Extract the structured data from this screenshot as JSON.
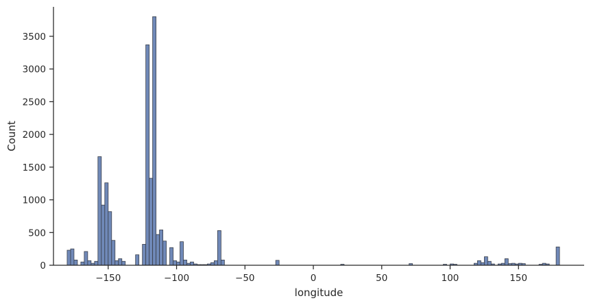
{
  "chart_data": {
    "type": "bar",
    "subtype": "histogram",
    "xlabel": "longitude",
    "ylabel": "Count",
    "xlim": [
      -190,
      198
    ],
    "ylim": [
      0,
      3950
    ],
    "xticks": [
      -150,
      -100,
      -50,
      0,
      50,
      100,
      150
    ],
    "xtick_labels": [
      "−150",
      "−100",
      "−50",
      "0",
      "50",
      "100",
      "150"
    ],
    "yticks": [
      0,
      500,
      1000,
      1500,
      2000,
      2500,
      3000,
      3500
    ],
    "ytick_labels": [
      "0",
      "500",
      "1000",
      "1500",
      "2000",
      "2500",
      "3000",
      "3500"
    ],
    "bin_width": 2.5,
    "grid": false,
    "colors": {
      "bar_fill": "#7089b8",
      "bar_edge": "#3a3f4a",
      "axis": "#262626"
    },
    "bins": [
      {
        "x": -180.0,
        "y": 230
      },
      {
        "x": -177.5,
        "y": 250
      },
      {
        "x": -175.0,
        "y": 80
      },
      {
        "x": -170.0,
        "y": 50
      },
      {
        "x": -167.5,
        "y": 210
      },
      {
        "x": -165.0,
        "y": 70
      },
      {
        "x": -162.5,
        "y": 30
      },
      {
        "x": -160.0,
        "y": 60
      },
      {
        "x": -157.5,
        "y": 1660
      },
      {
        "x": -155.0,
        "y": 920
      },
      {
        "x": -152.5,
        "y": 1260
      },
      {
        "x": -150.0,
        "y": 820
      },
      {
        "x": -147.5,
        "y": 380
      },
      {
        "x": -145.0,
        "y": 70
      },
      {
        "x": -142.5,
        "y": 100
      },
      {
        "x": -140.0,
        "y": 60
      },
      {
        "x": -130.0,
        "y": 160
      },
      {
        "x": -125.0,
        "y": 320
      },
      {
        "x": -122.5,
        "y": 3370
      },
      {
        "x": -120.0,
        "y": 1330
      },
      {
        "x": -117.5,
        "y": 3800
      },
      {
        "x": -115.0,
        "y": 470
      },
      {
        "x": -112.5,
        "y": 540
      },
      {
        "x": -110.0,
        "y": 370
      },
      {
        "x": -105.0,
        "y": 270
      },
      {
        "x": -102.5,
        "y": 70
      },
      {
        "x": -100.0,
        "y": 50
      },
      {
        "x": -97.5,
        "y": 360
      },
      {
        "x": -95.0,
        "y": 80
      },
      {
        "x": -92.5,
        "y": 30
      },
      {
        "x": -90.0,
        "y": 50
      },
      {
        "x": -87.5,
        "y": 20
      },
      {
        "x": -85.0,
        "y": 10
      },
      {
        "x": -82.5,
        "y": 10
      },
      {
        "x": -80.0,
        "y": 10
      },
      {
        "x": -77.5,
        "y": 20
      },
      {
        "x": -75.0,
        "y": 40
      },
      {
        "x": -72.5,
        "y": 70
      },
      {
        "x": -70.0,
        "y": 530
      },
      {
        "x": -67.5,
        "y": 80
      },
      {
        "x": -27.5,
        "y": 75
      },
      {
        "x": 20.0,
        "y": 15
      },
      {
        "x": 70.0,
        "y": 25
      },
      {
        "x": 95.0,
        "y": 15
      },
      {
        "x": 100.0,
        "y": 20
      },
      {
        "x": 102.5,
        "y": 15
      },
      {
        "x": 117.5,
        "y": 30
      },
      {
        "x": 120.0,
        "y": 70
      },
      {
        "x": 122.5,
        "y": 40
      },
      {
        "x": 125.0,
        "y": 130
      },
      {
        "x": 127.5,
        "y": 60
      },
      {
        "x": 130.0,
        "y": 20
      },
      {
        "x": 135.0,
        "y": 20
      },
      {
        "x": 137.5,
        "y": 30
      },
      {
        "x": 140.0,
        "y": 100
      },
      {
        "x": 142.5,
        "y": 25
      },
      {
        "x": 145.0,
        "y": 30
      },
      {
        "x": 147.5,
        "y": 20
      },
      {
        "x": 150.0,
        "y": 30
      },
      {
        "x": 152.5,
        "y": 25
      },
      {
        "x": 165.0,
        "y": 15
      },
      {
        "x": 167.5,
        "y": 30
      },
      {
        "x": 170.0,
        "y": 20
      },
      {
        "x": 177.5,
        "y": 280
      }
    ]
  }
}
